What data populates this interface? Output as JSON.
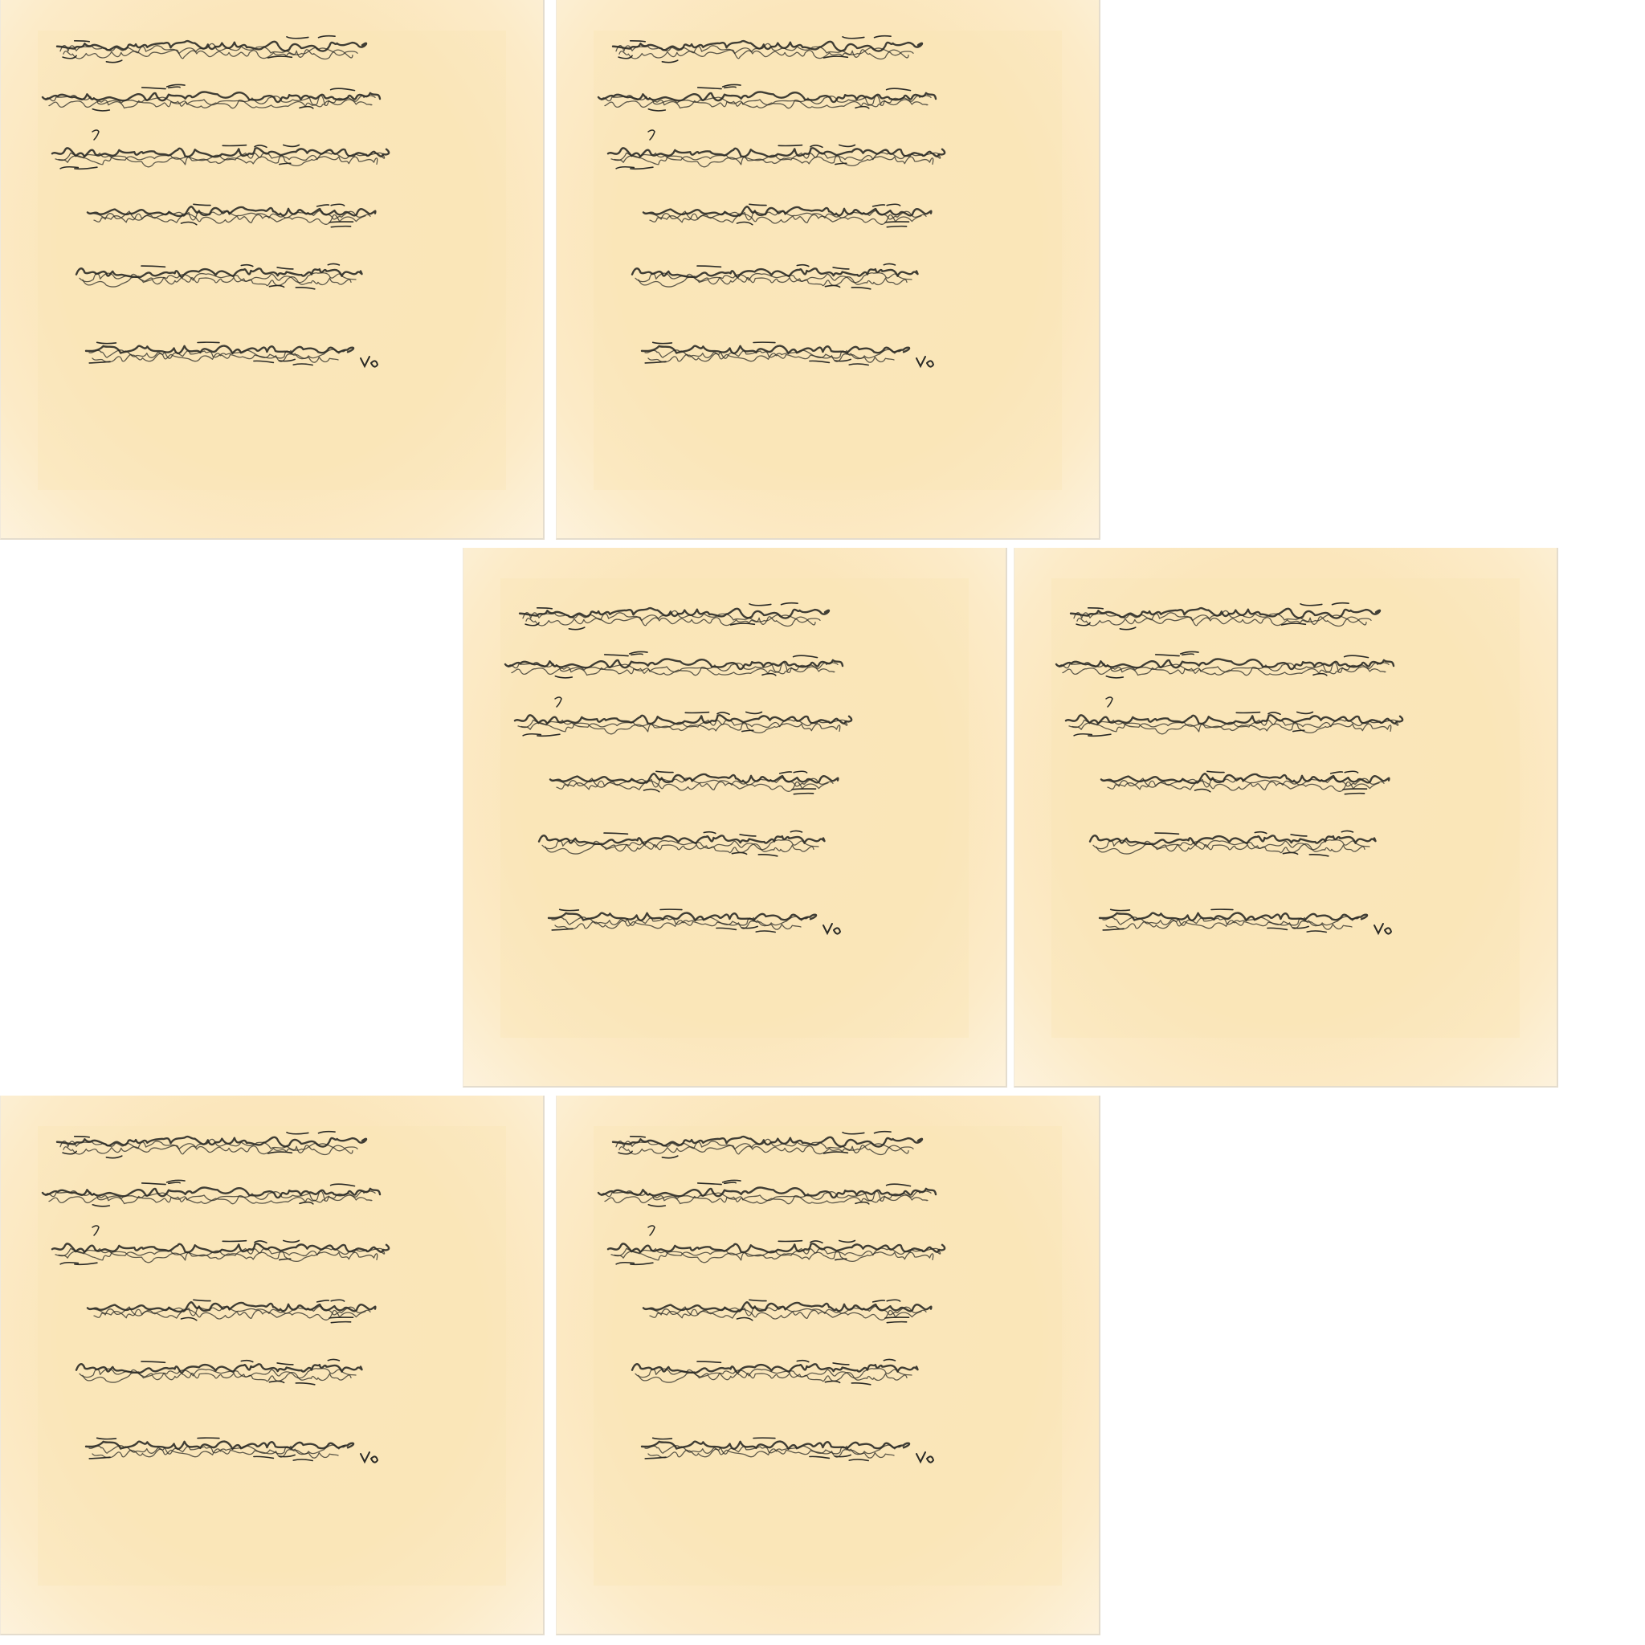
{
  "sheets": [
    {
      "id": "sheet-1",
      "variant": "original"
    },
    {
      "id": "sheet-2",
      "variant": "copy"
    },
    {
      "id": "sheet-3",
      "variant": "copy"
    },
    {
      "id": "sheet-4",
      "variant": "copy"
    },
    {
      "id": "sheet-5",
      "variant": "copy"
    },
    {
      "id": "sheet-6",
      "variant": "copy"
    }
  ],
  "colors": {
    "paper": "#fbe6bb",
    "paper_edge": "#fdf2dc",
    "ink": "#2a2a26",
    "background": "#ffffff"
  },
  "content": "asemic-handwriting-scribble"
}
